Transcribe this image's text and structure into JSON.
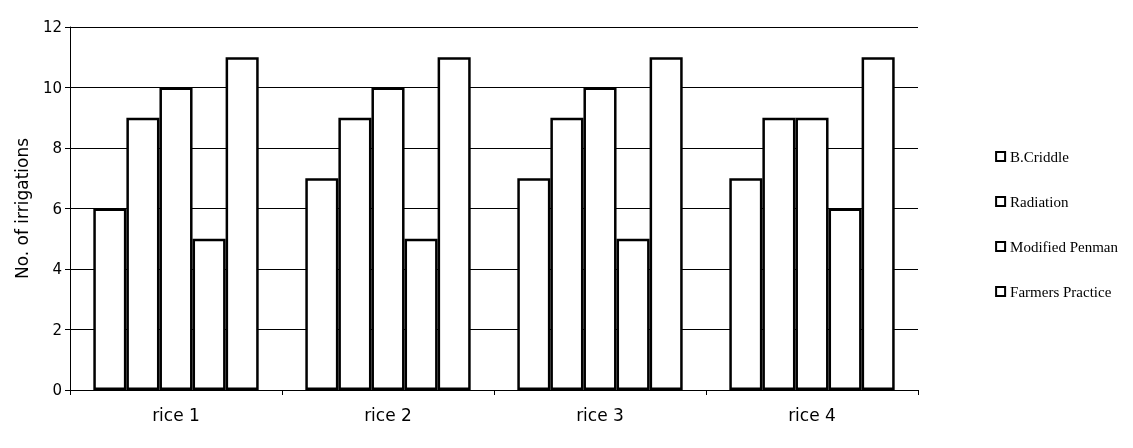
{
  "chart_data": {
    "type": "bar",
    "ylabel": "No. of irrigations",
    "categories": [
      "rice 1",
      "rice 2",
      "rice 3",
      "rice 4"
    ],
    "series": [
      {
        "name": "B.Criddle",
        "color": "#ffffff",
        "values": [
          6,
          7,
          7,
          7
        ]
      },
      {
        "name": "Radiation",
        "color": "#ffffff",
        "values": [
          9,
          9,
          9,
          9
        ]
      },
      {
        "name": "Modified Penman",
        "color": "#ffffff",
        "values": [
          10,
          10,
          10,
          9
        ]
      },
      {
        "color": "#ffffff",
        "values": [
          5,
          5,
          5,
          6
        ]
      },
      {
        "name": "Farmers Practice",
        "color": "#ffffff",
        "values": [
          11,
          11,
          11,
          11
        ]
      }
    ],
    "ylim": [
      0,
      12
    ],
    "yticks": [
      0,
      2,
      4,
      6,
      8,
      10,
      12
    ],
    "grid": "y",
    "legend": "right"
  }
}
